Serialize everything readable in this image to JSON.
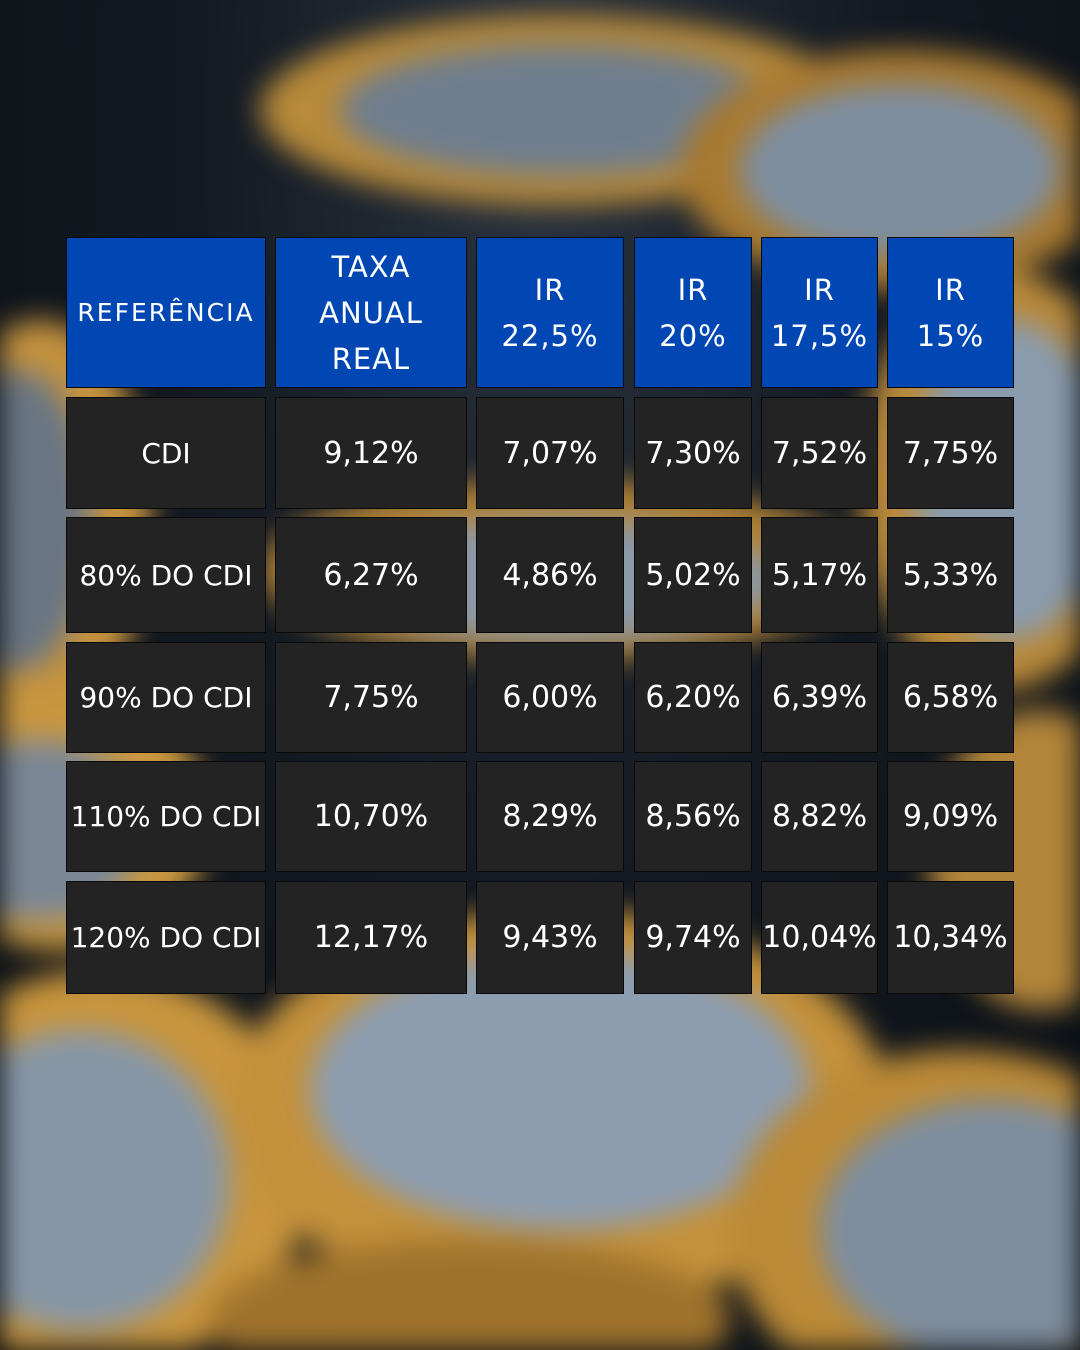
{
  "chart_data": {
    "type": "table",
    "columns": [
      "REFERÊNCIA",
      "TAXA ANUAL REAL",
      "IR 22,5%",
      "IR 20%",
      "IR 17,5%",
      "IR 15%"
    ],
    "header_lines": [
      [
        "REFERÊNCIA"
      ],
      [
        "TAXA",
        "ANUAL",
        "REAL"
      ],
      [
        "IR",
        "22,5%"
      ],
      [
        "IR",
        "20%"
      ],
      [
        "IR",
        "17,5%"
      ],
      [
        "IR",
        "15%"
      ]
    ],
    "rows": [
      [
        "CDI",
        "9,12%",
        "7,07%",
        "7,30%",
        "7,52%",
        "7,75%"
      ],
      [
        "80% DO CDI",
        "6,27%",
        "4,86%",
        "5,02%",
        "5,17%",
        "5,33%"
      ],
      [
        "90% DO CDI",
        "7,75%",
        "6,00%",
        "6,20%",
        "6,39%",
        "6,58%"
      ],
      [
        "110% DO CDI",
        "10,70%",
        "8,29%",
        "8,56%",
        "8,82%",
        "9,09%"
      ],
      [
        "120% DO CDI",
        "12,17%",
        "9,43%",
        "9,74%",
        "10,04%",
        "10,34%"
      ]
    ],
    "header_color": "#0047b3",
    "cell_color": "#232323"
  }
}
